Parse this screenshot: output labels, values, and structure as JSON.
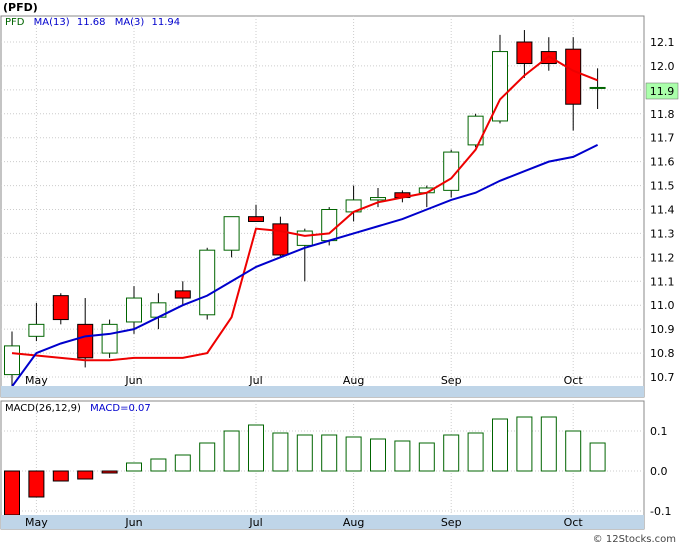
{
  "title": "(PFD)",
  "legend": {
    "symbol": "PFD",
    "ma13_label": "MA(13)",
    "ma13_value": "11.68",
    "ma3_label": "MA(3)",
    "ma3_value": "11.94"
  },
  "macd_legend": {
    "params": "MACD(26,12,9)",
    "label": "MACD=0.07"
  },
  "last_price_label": "11.9",
  "watermark": "© 12Stocks.com",
  "colors": {
    "up_candle_outline": "#006400",
    "down_candle_fill": "#ff0000",
    "ma13": "#0000cc",
    "ma3": "#ee0000",
    "macd_bar": "#006400",
    "legend_symbol": "#006400",
    "legend_ma13": "#0000cc",
    "legend_ma3": "#cc0000",
    "price_box": "#aaffaa",
    "axis_strip": "#bfd5e8"
  },
  "chart_data": [
    {
      "type": "candlestick",
      "name": "price",
      "ylim": [
        10.65,
        12.18
      ],
      "yticks": [
        10.7,
        10.8,
        10.9,
        11.0,
        11.1,
        11.2,
        11.3,
        11.4,
        11.5,
        11.6,
        11.7,
        11.8,
        11.9,
        12.0,
        12.1
      ],
      "ytick_labels": [
        "10.7",
        "10.8",
        "10.9",
        "11.0",
        "11.1",
        "11.2",
        "11.3",
        "11.4",
        "11.5",
        "11.6",
        "11.7",
        "11.8",
        "11.9",
        "12.0",
        "12.1"
      ],
      "xticks": [
        "May",
        "Jun",
        "Jul",
        "Aug",
        "Sep",
        "Oct"
      ],
      "xtick_index": [
        1,
        5,
        10,
        14,
        18,
        23
      ],
      "grid": true,
      "candles": [
        {
          "open": 10.71,
          "high": 10.89,
          "low": 10.65,
          "close": 10.83
        },
        {
          "open": 10.87,
          "high": 11.01,
          "low": 10.85,
          "close": 10.92
        },
        {
          "open": 11.04,
          "high": 11.05,
          "low": 10.92,
          "close": 10.94
        },
        {
          "open": 10.92,
          "high": 11.03,
          "low": 10.74,
          "close": 10.78
        },
        {
          "open": 10.8,
          "high": 10.94,
          "low": 10.78,
          "close": 10.92
        },
        {
          "open": 10.93,
          "high": 11.08,
          "low": 10.88,
          "close": 11.03
        },
        {
          "open": 10.95,
          "high": 11.05,
          "low": 10.9,
          "close": 11.01
        },
        {
          "open": 11.06,
          "high": 11.1,
          "low": 11.0,
          "close": 11.03
        },
        {
          "open": 10.96,
          "high": 11.24,
          "low": 10.94,
          "close": 11.23
        },
        {
          "open": 11.23,
          "high": 11.37,
          "low": 11.2,
          "close": 11.37
        },
        {
          "open": 11.37,
          "high": 11.42,
          "low": 11.35,
          "close": 11.35
        },
        {
          "open": 11.34,
          "high": 11.37,
          "low": 11.2,
          "close": 11.21
        },
        {
          "open": 11.25,
          "high": 11.32,
          "low": 11.1,
          "close": 11.31
        },
        {
          "open": 11.27,
          "high": 11.41,
          "low": 11.25,
          "close": 11.4
        },
        {
          "open": 11.39,
          "high": 11.5,
          "low": 11.35,
          "close": 11.44
        },
        {
          "open": 11.44,
          "high": 11.49,
          "low": 11.41,
          "close": 11.45
        },
        {
          "open": 11.47,
          "high": 11.48,
          "low": 11.43,
          "close": 11.45
        },
        {
          "open": 11.47,
          "high": 11.5,
          "low": 11.41,
          "close": 11.49
        },
        {
          "open": 11.48,
          "high": 11.65,
          "low": 11.45,
          "close": 11.64
        },
        {
          "open": 11.67,
          "high": 11.8,
          "low": 11.66,
          "close": 11.79
        },
        {
          "open": 11.77,
          "high": 12.13,
          "low": 11.76,
          "close": 12.06
        },
        {
          "open": 12.1,
          "high": 12.15,
          "low": 11.95,
          "close": 12.01
        },
        {
          "open": 12.06,
          "high": 12.12,
          "low": 11.98,
          "close": 12.01
        },
        {
          "open": 12.07,
          "high": 12.12,
          "low": 11.73,
          "close": 11.84
        },
        {
          "open": 11.91,
          "high": 11.99,
          "low": 11.82,
          "close": 11.91
        }
      ],
      "ma13": [
        10.66,
        10.8,
        10.84,
        10.87,
        10.88,
        10.9,
        10.95,
        11.0,
        11.04,
        11.1,
        11.16,
        11.2,
        11.24,
        11.27,
        11.3,
        11.33,
        11.36,
        11.4,
        11.44,
        11.47,
        11.52,
        11.56,
        11.6,
        11.62,
        11.67
      ],
      "ma3": [
        10.8,
        10.79,
        10.78,
        10.77,
        10.77,
        10.78,
        10.78,
        10.78,
        10.8,
        10.95,
        11.32,
        11.31,
        11.29,
        11.3,
        11.39,
        11.43,
        11.45,
        11.47,
        11.53,
        11.65,
        11.86,
        11.96,
        12.04,
        11.98,
        11.94
      ]
    },
    {
      "type": "bar",
      "name": "macd",
      "ylim": [
        -0.11,
        0.12
      ],
      "yticks": [
        0.1,
        0.0,
        -0.1
      ],
      "ytick_labels": [
        "0.1",
        "0.0",
        "-0.1"
      ],
      "xticks": [
        "May",
        "Jun",
        "Jul",
        "Aug",
        "Sep",
        "Oct"
      ],
      "xtick_index": [
        1,
        5,
        10,
        14,
        18,
        23
      ],
      "values": [
        -0.11,
        -0.065,
        -0.025,
        -0.02,
        -0.005,
        0.02,
        0.03,
        0.04,
        0.07,
        0.1,
        0.115,
        0.095,
        0.09,
        0.09,
        0.085,
        0.08,
        0.075,
        0.07,
        0.09,
        0.095,
        0.13,
        0.135,
        0.135,
        0.1,
        0.07
      ]
    }
  ]
}
